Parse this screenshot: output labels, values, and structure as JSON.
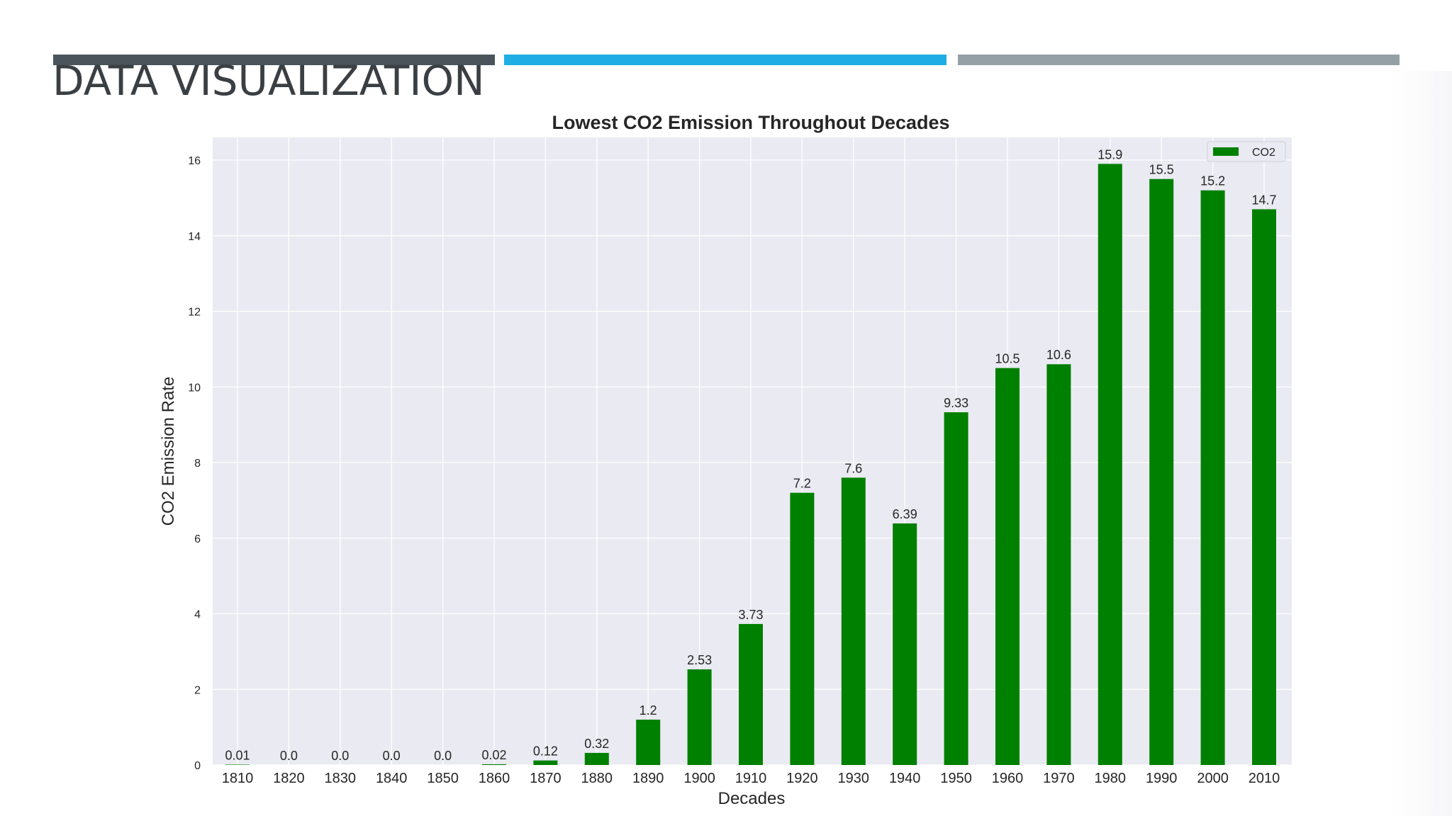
{
  "slide": {
    "title": "DATA VISUALIZATION"
  },
  "colors": {
    "accent_dark": "#4a545a",
    "accent_blue": "#1eaee5",
    "accent_gray": "#959fa6",
    "bar": "#008000",
    "plot_bg": "#eaeaf2"
  },
  "chart_data": {
    "type": "bar",
    "title": "Lowest CO2 Emission Throughout Decades",
    "xlabel": "Decades",
    "ylabel": "CO2 Emission Rate",
    "ylim": [
      0,
      16.6
    ],
    "yticks": [
      "0",
      "2",
      "4",
      "6",
      "8",
      "10",
      "12",
      "14",
      "16"
    ],
    "grid": true,
    "legend": {
      "position": "top-right",
      "entries": [
        "CO2"
      ]
    },
    "categories": [
      "1810",
      "1820",
      "1830",
      "1840",
      "1850",
      "1860",
      "1870",
      "1880",
      "1890",
      "1900",
      "1910",
      "1920",
      "1930",
      "1940",
      "1950",
      "1960",
      "1970",
      "1980",
      "1990",
      "2000",
      "2010"
    ],
    "series": [
      {
        "name": "CO2",
        "values": [
          0.01,
          0.0,
          0.0,
          0.0,
          0.0,
          0.02,
          0.12,
          0.32,
          1.2,
          2.53,
          3.73,
          7.2,
          7.6,
          6.39,
          9.33,
          10.5,
          10.6,
          15.9,
          15.5,
          15.2,
          14.7
        ],
        "labels": [
          "0.01",
          "0.0",
          "0.0",
          "0.0",
          "0.0",
          "0.02",
          "0.12",
          "0.32",
          "1.2",
          "2.53",
          "3.73",
          "7.2",
          "7.6",
          "6.39",
          "9.33",
          "10.5",
          "10.6",
          "15.9",
          "15.5",
          "15.2",
          "14.7"
        ]
      }
    ]
  }
}
